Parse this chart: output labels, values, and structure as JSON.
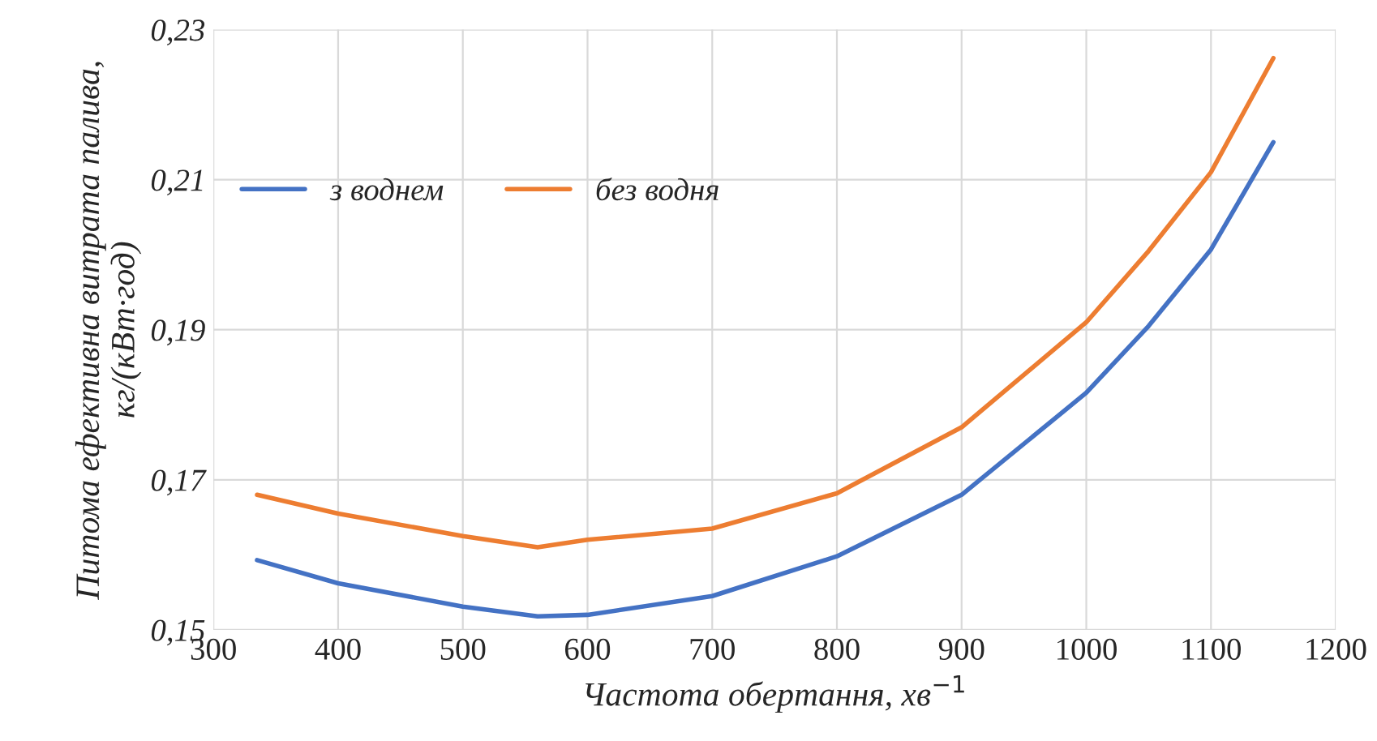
{
  "chart_data": {
    "type": "line",
    "xlabel": "Частота обертання, хв$^{−1}$",
    "ylabel": "Питома ефективна витрата палива, кг/(кВт·год)",
    "xlim": [
      300,
      1200
    ],
    "xticks": [
      300,
      400,
      500,
      600,
      700,
      800,
      900,
      1000,
      1100,
      1200
    ],
    "ylim": [
      0.15,
      0.23
    ],
    "yticks": [
      {
        "value": 0.15,
        "label": "0,15"
      },
      {
        "value": 0.17,
        "label": "0,17"
      },
      {
        "value": 0.19,
        "label": "0,19"
      },
      {
        "value": 0.21,
        "label": "0,21"
      },
      {
        "value": 0.23,
        "label": "0,23"
      }
    ],
    "grid": true,
    "legend": "top left",
    "marker": "none",
    "line_style": "solid",
    "x": [
      335,
      400,
      500,
      560,
      600,
      700,
      800,
      900,
      1000,
      1050,
      1100,
      1150
    ],
    "series": [
      {
        "name": "з воднем",
        "color": "#4472c4",
        "values": [
          0.1593,
          0.1562,
          0.1531,
          0.1518,
          0.152,
          0.1545,
          0.1598,
          0.168,
          0.1816,
          0.1905,
          0.2007,
          0.215
        ]
      },
      {
        "name": "без водня",
        "color": "#ed7d31",
        "values": [
          0.168,
          0.1655,
          0.1625,
          0.161,
          0.162,
          0.1635,
          0.1682,
          0.177,
          0.191,
          0.2005,
          0.211,
          0.2262
        ]
      }
    ]
  }
}
